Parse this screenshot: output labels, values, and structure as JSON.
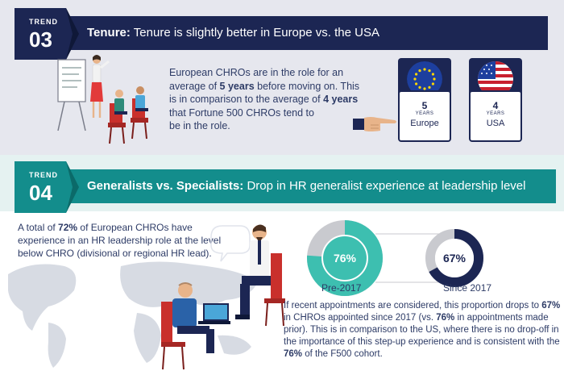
{
  "trend1": {
    "label": "TREND",
    "number": "03",
    "title_bold": "Tenure:",
    "title_rest": " Tenure is slightly better in Europe vs. the USA",
    "body_pre": "European CHROs are in the role for an average of ",
    "body_b1": "5 years",
    "body_mid": " before moving on. This is in comparison to the average of ",
    "body_b2": "4 years",
    "body_post": " that Fortune 500 CHROs tend to",
    "body_last": "be in the role.",
    "cards": [
      {
        "value": "5",
        "unit": "YEARS",
        "name": "Europe"
      },
      {
        "value": "4",
        "unit": "YEARS",
        "name": "USA"
      }
    ]
  },
  "trend2": {
    "label": "TREND",
    "number": "04",
    "title_bold": "Generalists vs. Specialists:",
    "title_rest": " Drop in HR generalist experience at leadership level",
    "left_pre": "A total of ",
    "left_b": "72%",
    "left_post": " of European CHROs have experience in an HR leadership role at the level below CHRO (divisional or regional HR lead).",
    "donuts": [
      {
        "percent_label": "76%",
        "value": 76,
        "label": "Pre-2017"
      },
      {
        "percent_label": "67%",
        "value": 67,
        "label": "Since 2017"
      }
    ],
    "bottom_pre": "If recent appointments are considered, this proportion drops to ",
    "bottom_b1": "67%",
    "bottom_mid1": " in CHROs appointed since 2017 (vs. ",
    "bottom_b2": "76%",
    "bottom_mid2": " in appointments made prior). This is in comparison to the US, where there is no drop-off in the importance of this step-up experience and is consistent with the ",
    "bottom_b3": "76%",
    "bottom_post": " of the F500 cohort."
  },
  "colors": {
    "navy": "#1c2653",
    "teal": "#138d8c",
    "teal_light": "#3dbfb0",
    "gray_ring": "#c9cacf",
    "bg1": "#e6e7ee",
    "bg2": "#e5f2f1"
  },
  "icons": [
    "eu-flag-icon",
    "us-flag-icon",
    "pointing-hand-icon",
    "presenter-illustration",
    "interview-illustration",
    "world-map-icon"
  ]
}
